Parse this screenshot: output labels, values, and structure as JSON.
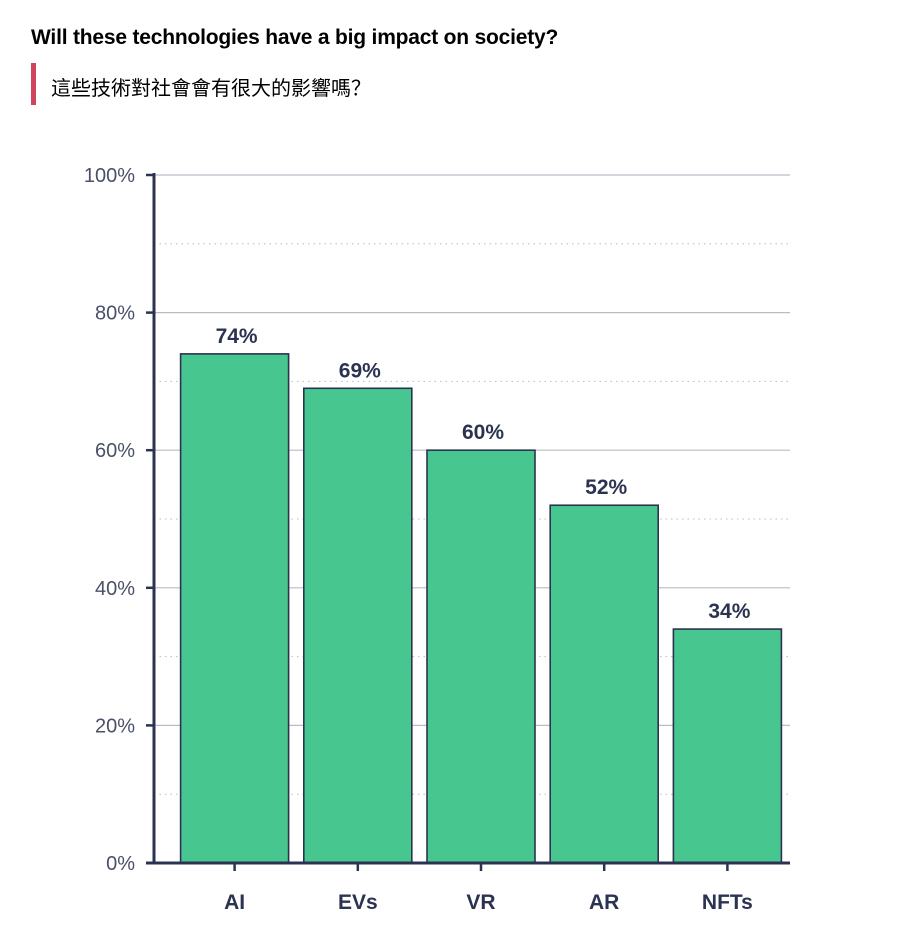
{
  "header": {
    "title": "Will these technologies have a big impact on society?",
    "subtitle": "這些技術對社會會有很大的影響嗎？"
  },
  "colors": {
    "bar_fill": "#47c78f",
    "bar_stroke": "#2b3350",
    "axis": "#2b3350",
    "gridline": "#b9bcc6",
    "accent": "#d0455e"
  },
  "chart_data": {
    "type": "bar",
    "categories": [
      "AI",
      "EVs",
      "VR",
      "AR",
      "NFTs"
    ],
    "values": [
      74,
      69,
      60,
      52,
      34
    ],
    "value_labels": [
      "74%",
      "69%",
      "60%",
      "52%",
      "34%"
    ],
    "ylim": [
      0,
      100
    ],
    "yticks": [
      0,
      20,
      40,
      60,
      80,
      100
    ],
    "ytick_labels": [
      "0%",
      "20%",
      "40%",
      "60%",
      "80%",
      "100%"
    ],
    "grid": true,
    "legend": "none"
  }
}
